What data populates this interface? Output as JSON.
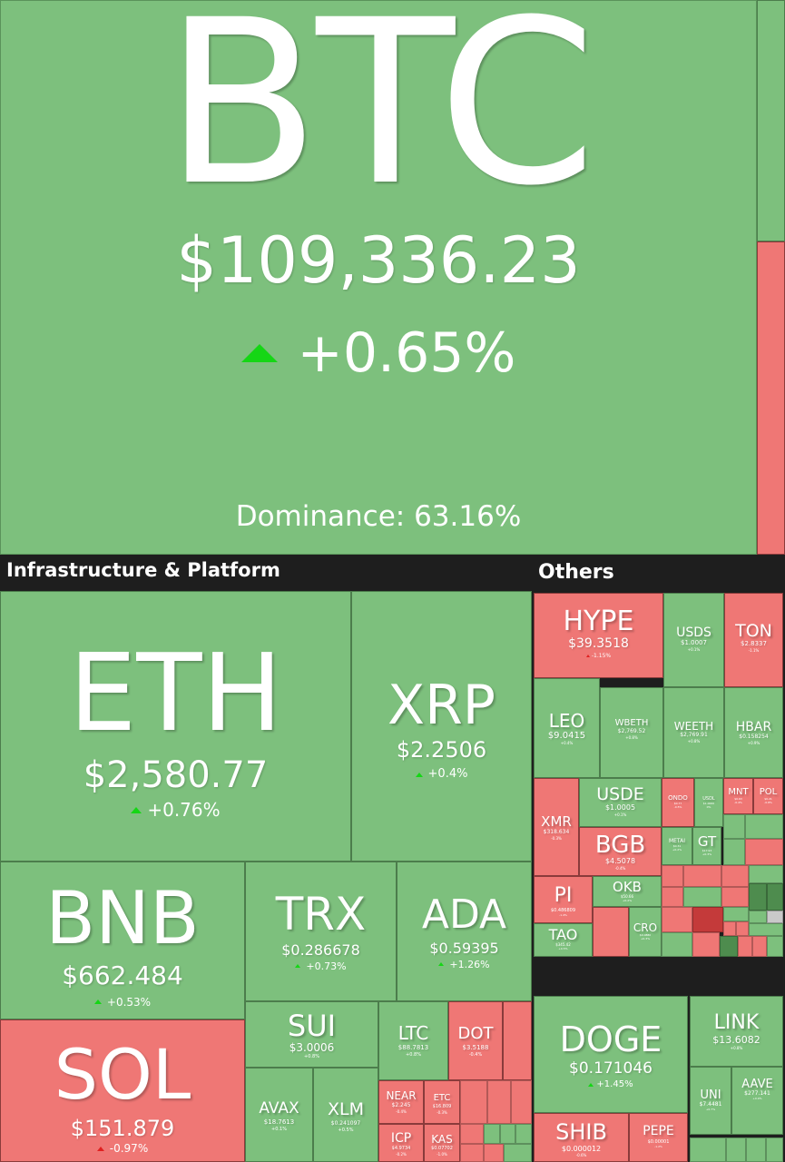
{
  "btc": {
    "symbol": "BTC",
    "price": "$109,336.23",
    "change": "+0.65%",
    "dominance": "Dominance: 63.16%"
  },
  "sections": {
    "infra": "Infrastructure & Platform",
    "others": "Others"
  },
  "infra": {
    "eth": {
      "symbol": "ETH",
      "price": "$2,580.77",
      "change": "+0.76%"
    },
    "xrp": {
      "symbol": "XRP",
      "price": "$2.2506",
      "change": "+0.4%"
    },
    "bnb": {
      "symbol": "BNB",
      "price": "$662.484",
      "change": "+0.53%"
    },
    "trx": {
      "symbol": "TRX",
      "price": "$0.286678",
      "change": "+0.73%"
    },
    "ada": {
      "symbol": "ADA",
      "price": "$0.59395",
      "change": "+1.26%"
    },
    "sol": {
      "symbol": "SOL",
      "price": "$151.879",
      "change": "-0.97%"
    },
    "sui": {
      "symbol": "SUI",
      "price": "$3.0006",
      "change": "+0.8%"
    },
    "ltc": {
      "symbol": "LTC",
      "price": "$88.7813",
      "change": "+0.8%"
    },
    "dot": {
      "symbol": "DOT",
      "price": "$3.5188",
      "change": "-0.4%"
    },
    "avax": {
      "symbol": "AVAX",
      "price": "$18.7613",
      "change": "+0.1%"
    },
    "xlm": {
      "symbol": "XLM",
      "price": "$0.241097",
      "change": "+0.5%"
    },
    "near": {
      "symbol": "NEAR",
      "price": "$2.245",
      "change": "-0.4%"
    },
    "etc": {
      "symbol": "ETC",
      "price": "$16.809",
      "change": "-0.3%"
    },
    "icp": {
      "symbol": "ICP",
      "price": "$4.9734",
      "change": "-0.2%"
    },
    "kas": {
      "symbol": "KAS",
      "price": "$0.07702",
      "change": "-1.0%"
    }
  },
  "others": {
    "hype": {
      "symbol": "HYPE",
      "price": "$39.3518",
      "change": "-1.15%"
    },
    "usds": {
      "symbol": "USDS",
      "price": "$1.0007",
      "change": "+0.1%"
    },
    "ton": {
      "symbol": "TON",
      "price": "$2.8337",
      "change": "-1.1%"
    },
    "leo": {
      "symbol": "LEO",
      "price": "$9.0415",
      "change": "+0.4%"
    },
    "wbeth": {
      "symbol": "WBETH",
      "price": "$2,769.52",
      "change": "+0.8%"
    },
    "weeth": {
      "symbol": "WEETH",
      "price": "$2,769.91",
      "change": "+0.8%"
    },
    "hbar": {
      "symbol": "HBAR",
      "price": "$0.158254",
      "change": "+0.9%"
    },
    "usde": {
      "symbol": "USDE",
      "price": "$1.0005",
      "change": "+0.1%"
    },
    "xmr": {
      "symbol": "XMR",
      "price": "$318.634",
      "change": "-0.3%"
    },
    "ondo": {
      "symbol": "ONDO",
      "price": "$0.77",
      "change": "-0.5%"
    },
    "usdl": {
      "symbol": "USDL",
      "price": "$1.0000",
      "change": "0%"
    },
    "mnt": {
      "symbol": "MNT",
      "price": "$0.63",
      "change": "-0.4%"
    },
    "pol": {
      "symbol": "POL",
      "price": "$0.21",
      "change": "-0.8%"
    },
    "bgb": {
      "symbol": "BGB",
      "price": "$4.5078",
      "change": "-0.4%"
    },
    "metai": {
      "symbol": "METAI",
      "price": "$0.31",
      "change": "+0.2%"
    },
    "gt": {
      "symbol": "GT",
      "price": "$17.93",
      "change": "+0.3%"
    },
    "pi": {
      "symbol": "PI",
      "price": "$0.486809",
      "change": "-1.4%"
    },
    "okb": {
      "symbol": "OKB",
      "price": "$50.66",
      "change": "+0.2%"
    },
    "tao": {
      "symbol": "TAO",
      "price": "$345.42",
      "change": "+0.5%"
    },
    "cro": {
      "symbol": "CRO",
      "price": "$0.0880",
      "change": "+0.3%"
    }
  },
  "meme": {
    "doge": {
      "symbol": "DOGE",
      "price": "$0.171046",
      "change": "+1.45%"
    },
    "link": {
      "symbol": "LINK",
      "price": "$13.6082",
      "change": "+0.8%"
    },
    "uni": {
      "symbol": "UNI",
      "price": "$7.4481",
      "change": "+0.7%"
    },
    "aave": {
      "symbol": "AAVE",
      "price": "$277.141",
      "change": "+0.9%"
    },
    "shib": {
      "symbol": "SHIB",
      "price": "$0.000012",
      "change": "-0.6%"
    },
    "pepe": {
      "symbol": "PEPE",
      "price": "$0.00001",
      "change": "-1.2%"
    }
  },
  "colors": {
    "green": "#7dc07d",
    "red": "#ef7775",
    "up": "#15d615",
    "down": "#e02020",
    "header": "#1e1e1e"
  }
}
